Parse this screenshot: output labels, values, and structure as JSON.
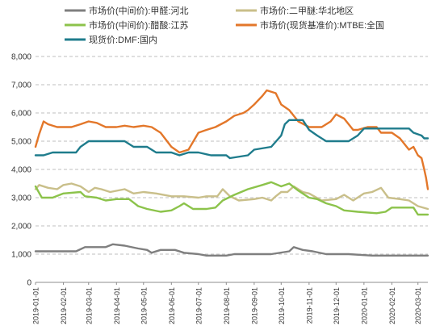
{
  "chart_data": {
    "type": "line",
    "title": "",
    "xlabel": "",
    "ylabel": "",
    "ylim": [
      0,
      8000
    ],
    "y_ticks": [
      0,
      1000,
      2000,
      3000,
      4000,
      5000,
      6000,
      7000,
      8000
    ],
    "y_tick_labels": [
      "0",
      "1,000",
      "2,000",
      "3,000",
      "4,000",
      "5,000",
      "6,000",
      "7,000",
      "8,000"
    ],
    "x_range": [
      "2019-01-01",
      "2020-03-12"
    ],
    "x_tick_labels": [
      "2019-01-01",
      "2019-02-01",
      "2019-03-01",
      "2019-04-01",
      "2019-05-01",
      "2019-06-01",
      "2019-07-01",
      "2019-08-01",
      "2019-09-01",
      "2019-10-01",
      "2019-11-01",
      "2019-12-01",
      "2020-01-01",
      "2020-02-01",
      "2020-03-01"
    ],
    "grid": "horizontal-dashed",
    "legend_position": "top",
    "series": [
      {
        "name": "市场价(中间价):甲醛:河北",
        "color": "#7f7f7f",
        "points": [
          [
            "2019-01-01",
            1100
          ],
          [
            "2019-02-15",
            1100
          ],
          [
            "2019-02-25",
            1250
          ],
          [
            "2019-03-20",
            1250
          ],
          [
            "2019-03-28",
            1350
          ],
          [
            "2019-04-10",
            1300
          ],
          [
            "2019-04-25",
            1200
          ],
          [
            "2019-05-05",
            1150
          ],
          [
            "2019-05-10",
            1050
          ],
          [
            "2019-05-20",
            1150
          ],
          [
            "2019-06-05",
            1150
          ],
          [
            "2019-06-15",
            1050
          ],
          [
            "2019-07-01",
            1000
          ],
          [
            "2019-07-10",
            950
          ],
          [
            "2019-08-01",
            950
          ],
          [
            "2019-08-10",
            1000
          ],
          [
            "2019-09-20",
            1000
          ],
          [
            "2019-10-10",
            1100
          ],
          [
            "2019-10-15",
            1250
          ],
          [
            "2019-10-25",
            1150
          ],
          [
            "2019-11-05",
            1100
          ],
          [
            "2019-11-20",
            1000
          ],
          [
            "2019-12-15",
            1000
          ],
          [
            "2020-01-10",
            950
          ],
          [
            "2020-02-01",
            950
          ],
          [
            "2020-03-12",
            950
          ]
        ]
      },
      {
        "name": "市场价:二甲醚:华北地区",
        "color": "#c9bf8a",
        "points": [
          [
            "2019-01-01",
            3300
          ],
          [
            "2019-01-05",
            3450
          ],
          [
            "2019-01-15",
            3350
          ],
          [
            "2019-01-25",
            3300
          ],
          [
            "2019-02-01",
            3450
          ],
          [
            "2019-02-10",
            3500
          ],
          [
            "2019-02-20",
            3400
          ],
          [
            "2019-03-01",
            3200
          ],
          [
            "2019-03-08",
            3350
          ],
          [
            "2019-03-15",
            3300
          ],
          [
            "2019-03-25",
            3200
          ],
          [
            "2019-04-10",
            3300
          ],
          [
            "2019-04-20",
            3150
          ],
          [
            "2019-05-01",
            3200
          ],
          [
            "2019-05-15",
            3150
          ],
          [
            "2019-06-01",
            3050
          ],
          [
            "2019-06-15",
            3050
          ],
          [
            "2019-07-01",
            3000
          ],
          [
            "2019-07-10",
            3050
          ],
          [
            "2019-07-22",
            3050
          ],
          [
            "2019-07-28",
            3300
          ],
          [
            "2019-08-05",
            3050
          ],
          [
            "2019-08-15",
            2900
          ],
          [
            "2019-09-01",
            2950
          ],
          [
            "2019-09-10",
            3000
          ],
          [
            "2019-09-20",
            2900
          ],
          [
            "2019-09-25",
            3050
          ],
          [
            "2019-10-01",
            3200
          ],
          [
            "2019-10-08",
            3200
          ],
          [
            "2019-10-15",
            3400
          ],
          [
            "2019-10-25",
            3200
          ],
          [
            "2019-11-01",
            3150
          ],
          [
            "2019-11-15",
            2900
          ],
          [
            "2019-12-01",
            2950
          ],
          [
            "2019-12-10",
            3100
          ],
          [
            "2019-12-20",
            2900
          ],
          [
            "2020-01-01",
            3150
          ],
          [
            "2020-01-10",
            3200
          ],
          [
            "2020-01-20",
            3350
          ],
          [
            "2020-01-28",
            3000
          ],
          [
            "2020-02-10",
            2950
          ],
          [
            "2020-02-20",
            2900
          ],
          [
            "2020-03-01",
            2700
          ],
          [
            "2020-03-12",
            2600
          ]
        ]
      },
      {
        "name": "市场价(中间价):醋酸:江苏",
        "color": "#8cc34b",
        "points": [
          [
            "2019-01-01",
            3400
          ],
          [
            "2019-01-08",
            3000
          ],
          [
            "2019-01-20",
            3000
          ],
          [
            "2019-02-01",
            3150
          ],
          [
            "2019-02-20",
            3200
          ],
          [
            "2019-02-25",
            3050
          ],
          [
            "2019-03-10",
            3000
          ],
          [
            "2019-03-20",
            2900
          ],
          [
            "2019-04-01",
            2950
          ],
          [
            "2019-04-15",
            2950
          ],
          [
            "2019-04-25",
            2700
          ],
          [
            "2019-05-05",
            2600
          ],
          [
            "2019-05-20",
            2500
          ],
          [
            "2019-06-01",
            2550
          ],
          [
            "2019-06-10",
            2700
          ],
          [
            "2019-06-15",
            2800
          ],
          [
            "2019-06-25",
            2600
          ],
          [
            "2019-07-10",
            2600
          ],
          [
            "2019-07-20",
            2650
          ],
          [
            "2019-07-28",
            2900
          ],
          [
            "2019-08-10",
            3100
          ],
          [
            "2019-08-25",
            3300
          ],
          [
            "2019-09-10",
            3450
          ],
          [
            "2019-09-20",
            3550
          ],
          [
            "2019-10-01",
            3400
          ],
          [
            "2019-10-10",
            3500
          ],
          [
            "2019-10-20",
            3250
          ],
          [
            "2019-11-01",
            3000
          ],
          [
            "2019-11-10",
            2950
          ],
          [
            "2019-11-20",
            2800
          ],
          [
            "2019-12-01",
            2700
          ],
          [
            "2019-12-10",
            2550
          ],
          [
            "2019-12-25",
            2500
          ],
          [
            "2020-01-15",
            2450
          ],
          [
            "2020-01-25",
            2500
          ],
          [
            "2020-02-01",
            2650
          ],
          [
            "2020-02-25",
            2650
          ],
          [
            "2020-03-01",
            2400
          ],
          [
            "2020-03-12",
            2400
          ]
        ]
      },
      {
        "name": "市场价(现货基准价):MTBE:全国",
        "color": "#e3772a",
        "points": [
          [
            "2019-01-01",
            4800
          ],
          [
            "2019-01-05",
            5250
          ],
          [
            "2019-01-10",
            5700
          ],
          [
            "2019-01-15",
            5600
          ],
          [
            "2019-01-25",
            5500
          ],
          [
            "2019-02-10",
            5500
          ],
          [
            "2019-02-20",
            5600
          ],
          [
            "2019-03-01",
            5700
          ],
          [
            "2019-03-10",
            5650
          ],
          [
            "2019-03-20",
            5500
          ],
          [
            "2019-04-01",
            5500
          ],
          [
            "2019-04-10",
            5550
          ],
          [
            "2019-04-20",
            5500
          ],
          [
            "2019-05-01",
            5550
          ],
          [
            "2019-05-10",
            5500
          ],
          [
            "2019-05-20",
            5300
          ],
          [
            "2019-06-01",
            4800
          ],
          [
            "2019-06-10",
            4600
          ],
          [
            "2019-06-20",
            4700
          ],
          [
            "2019-07-01",
            5300
          ],
          [
            "2019-07-10",
            5400
          ],
          [
            "2019-07-20",
            5500
          ],
          [
            "2019-08-01",
            5700
          ],
          [
            "2019-08-10",
            5900
          ],
          [
            "2019-08-20",
            6000
          ],
          [
            "2019-08-25",
            6100
          ],
          [
            "2019-09-01",
            6300
          ],
          [
            "2019-09-10",
            6600
          ],
          [
            "2019-09-15",
            6800
          ],
          [
            "2019-09-25",
            6700
          ],
          [
            "2019-10-01",
            6300
          ],
          [
            "2019-10-10",
            6100
          ],
          [
            "2019-10-20",
            5700
          ],
          [
            "2019-11-01",
            5500
          ],
          [
            "2019-11-15",
            5500
          ],
          [
            "2019-11-25",
            5700
          ],
          [
            "2019-12-01",
            5950
          ],
          [
            "2019-12-10",
            5800
          ],
          [
            "2019-12-20",
            5400
          ],
          [
            "2019-12-25",
            5400
          ],
          [
            "2020-01-05",
            5500
          ],
          [
            "2020-01-15",
            5500
          ],
          [
            "2020-01-20",
            5300
          ],
          [
            "2020-02-01",
            5300
          ],
          [
            "2020-02-10",
            5100
          ],
          [
            "2020-02-20",
            4700
          ],
          [
            "2020-02-25",
            4800
          ],
          [
            "2020-03-01",
            4500
          ],
          [
            "2020-03-05",
            4400
          ],
          [
            "2020-03-08",
            4000
          ],
          [
            "2020-03-10",
            3700
          ],
          [
            "2020-03-12",
            3300
          ]
        ]
      },
      {
        "name": "现货价:DMF:国内",
        "color": "#1f7c8c",
        "points": [
          [
            "2019-01-01",
            4500
          ],
          [
            "2019-01-10",
            4500
          ],
          [
            "2019-01-20",
            4600
          ],
          [
            "2019-02-15",
            4600
          ],
          [
            "2019-02-20",
            4800
          ],
          [
            "2019-03-01",
            5000
          ],
          [
            "2019-03-20",
            5000
          ],
          [
            "2019-04-10",
            5000
          ],
          [
            "2019-04-20",
            4800
          ],
          [
            "2019-05-05",
            4800
          ],
          [
            "2019-05-15",
            4600
          ],
          [
            "2019-06-01",
            4600
          ],
          [
            "2019-06-10",
            4500
          ],
          [
            "2019-06-20",
            4600
          ],
          [
            "2019-07-01",
            4600
          ],
          [
            "2019-07-15",
            4500
          ],
          [
            "2019-08-01",
            4500
          ],
          [
            "2019-08-05",
            4400
          ],
          [
            "2019-08-25",
            4500
          ],
          [
            "2019-09-01",
            4700
          ],
          [
            "2019-09-20",
            4800
          ],
          [
            "2019-10-01",
            5200
          ],
          [
            "2019-10-05",
            5600
          ],
          [
            "2019-10-10",
            5750
          ],
          [
            "2019-10-25",
            5750
          ],
          [
            "2019-11-01",
            5400
          ],
          [
            "2019-11-10",
            5200
          ],
          [
            "2019-11-20",
            5000
          ],
          [
            "2019-12-15",
            5000
          ],
          [
            "2019-12-25",
            5200
          ],
          [
            "2020-01-01",
            5450
          ],
          [
            "2020-01-10",
            5450
          ],
          [
            "2020-01-20",
            5450
          ],
          [
            "2020-02-20",
            5450
          ],
          [
            "2020-02-25",
            5300
          ],
          [
            "2020-03-05",
            5200
          ],
          [
            "2020-03-08",
            5100
          ],
          [
            "2020-03-12",
            5100
          ]
        ]
      }
    ]
  }
}
